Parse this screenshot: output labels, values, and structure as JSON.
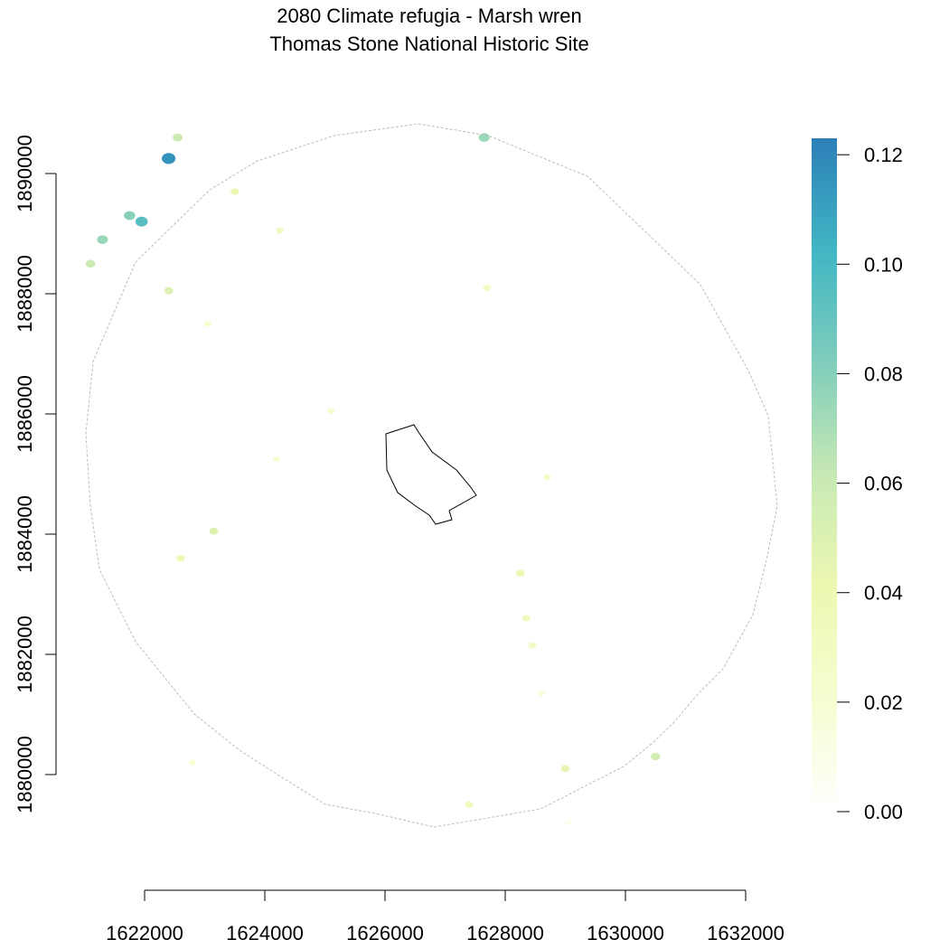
{
  "title": {
    "line1": "2080 Climate refugia - Marsh wren",
    "line2": "Thomas Stone National Historic Site"
  },
  "map": {
    "x_axis": {
      "ticks": [
        1622000,
        1624000,
        1626000,
        1628000,
        1630000,
        1632000
      ],
      "range": [
        1622000,
        1632000
      ]
    },
    "y_axis": {
      "ticks": [
        1880000,
        1882000,
        1884000,
        1886000,
        1888000,
        1890000
      ],
      "range": [
        1880000,
        1890000
      ]
    },
    "buffer_outline_color": "#bdbdbd",
    "park_boundary_color": "#000000",
    "refugia_patches": [
      {
        "x": 1622400,
        "y": 1890250,
        "value": 0.115
      },
      {
        "x": 1622550,
        "y": 1890600,
        "value": 0.06
      },
      {
        "x": 1621750,
        "y": 1889300,
        "value": 0.08
      },
      {
        "x": 1621950,
        "y": 1889200,
        "value": 0.095
      },
      {
        "x": 1621300,
        "y": 1888900,
        "value": 0.075
      },
      {
        "x": 1621100,
        "y": 1888500,
        "value": 0.06
      },
      {
        "x": 1623500,
        "y": 1889700,
        "value": 0.04
      },
      {
        "x": 1622400,
        "y": 1888050,
        "value": 0.05
      },
      {
        "x": 1624250,
        "y": 1889050,
        "value": 0.03
      },
      {
        "x": 1623050,
        "y": 1887500,
        "value": 0.02
      },
      {
        "x": 1627650,
        "y": 1890600,
        "value": 0.075
      },
      {
        "x": 1627700,
        "y": 1888100,
        "value": 0.03
      },
      {
        "x": 1625100,
        "y": 1886050,
        "value": 0.02
      },
      {
        "x": 1624200,
        "y": 1885250,
        "value": 0.02
      },
      {
        "x": 1623150,
        "y": 1884050,
        "value": 0.05
      },
      {
        "x": 1622600,
        "y": 1883600,
        "value": 0.04
      },
      {
        "x": 1628700,
        "y": 1884950,
        "value": 0.025
      },
      {
        "x": 1628250,
        "y": 1883350,
        "value": 0.04
      },
      {
        "x": 1628350,
        "y": 1882600,
        "value": 0.035
      },
      {
        "x": 1628450,
        "y": 1882150,
        "value": 0.03
      },
      {
        "x": 1628600,
        "y": 1881350,
        "value": 0.015
      },
      {
        "x": 1630500,
        "y": 1880300,
        "value": 0.055
      },
      {
        "x": 1629000,
        "y": 1880100,
        "value": 0.045
      },
      {
        "x": 1627400,
        "y": 1879500,
        "value": 0.035
      },
      {
        "x": 1622800,
        "y": 1880200,
        "value": 0.02
      },
      {
        "x": 1629050,
        "y": 1879200,
        "value": 0.01
      }
    ]
  },
  "legend": {
    "ticks": [
      0.0,
      0.02,
      0.04,
      0.06,
      0.08,
      0.1,
      0.12
    ],
    "tick_labels": [
      "0.00",
      "0.02",
      "0.04",
      "0.06",
      "0.08",
      "0.10",
      "0.12"
    ],
    "range": [
      0.0,
      0.123
    ],
    "color_stops": [
      "#ffffff",
      "#f7fcd0",
      "#edf8b1",
      "#c7e9b4",
      "#7fcdbb",
      "#41b6c4",
      "#2c7fb8"
    ]
  }
}
